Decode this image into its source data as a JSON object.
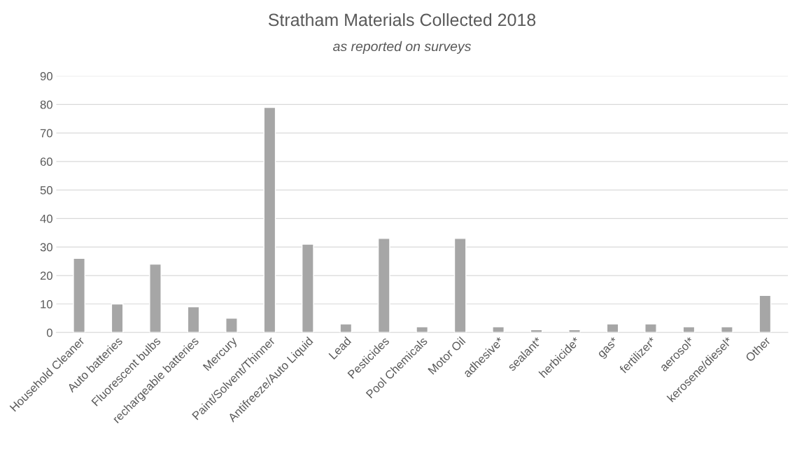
{
  "chart_data": {
    "type": "bar",
    "title": "Stratham Materials Collected 2018",
    "subtitle": "as reported on surveys",
    "categories": [
      "Household Cleaner",
      "Auto batteries",
      "Fluorescent bulbs",
      "rechargeable batteries",
      "Mercury",
      "Paint/Solvent/Thinner",
      "Antifreeze/Auto Liquid",
      "Lead",
      "Pesticides",
      "Pool Chemicals",
      "Motor Oil",
      "adhesive*",
      "sealant*",
      "herbicide*",
      "gas*",
      "fertilizer*",
      "aerosol*",
      "kerosene/diesel*",
      "Other"
    ],
    "values": [
      26,
      10,
      24,
      9,
      5,
      79,
      31,
      3,
      33,
      2,
      33,
      2,
      1,
      1,
      3,
      3,
      2,
      2,
      13
    ],
    "color": "#a6a6a6",
    "ylim": [
      0,
      90
    ],
    "yticks": [
      0,
      10,
      20,
      30,
      40,
      50,
      60,
      70,
      80,
      90
    ],
    "grid": "y"
  }
}
